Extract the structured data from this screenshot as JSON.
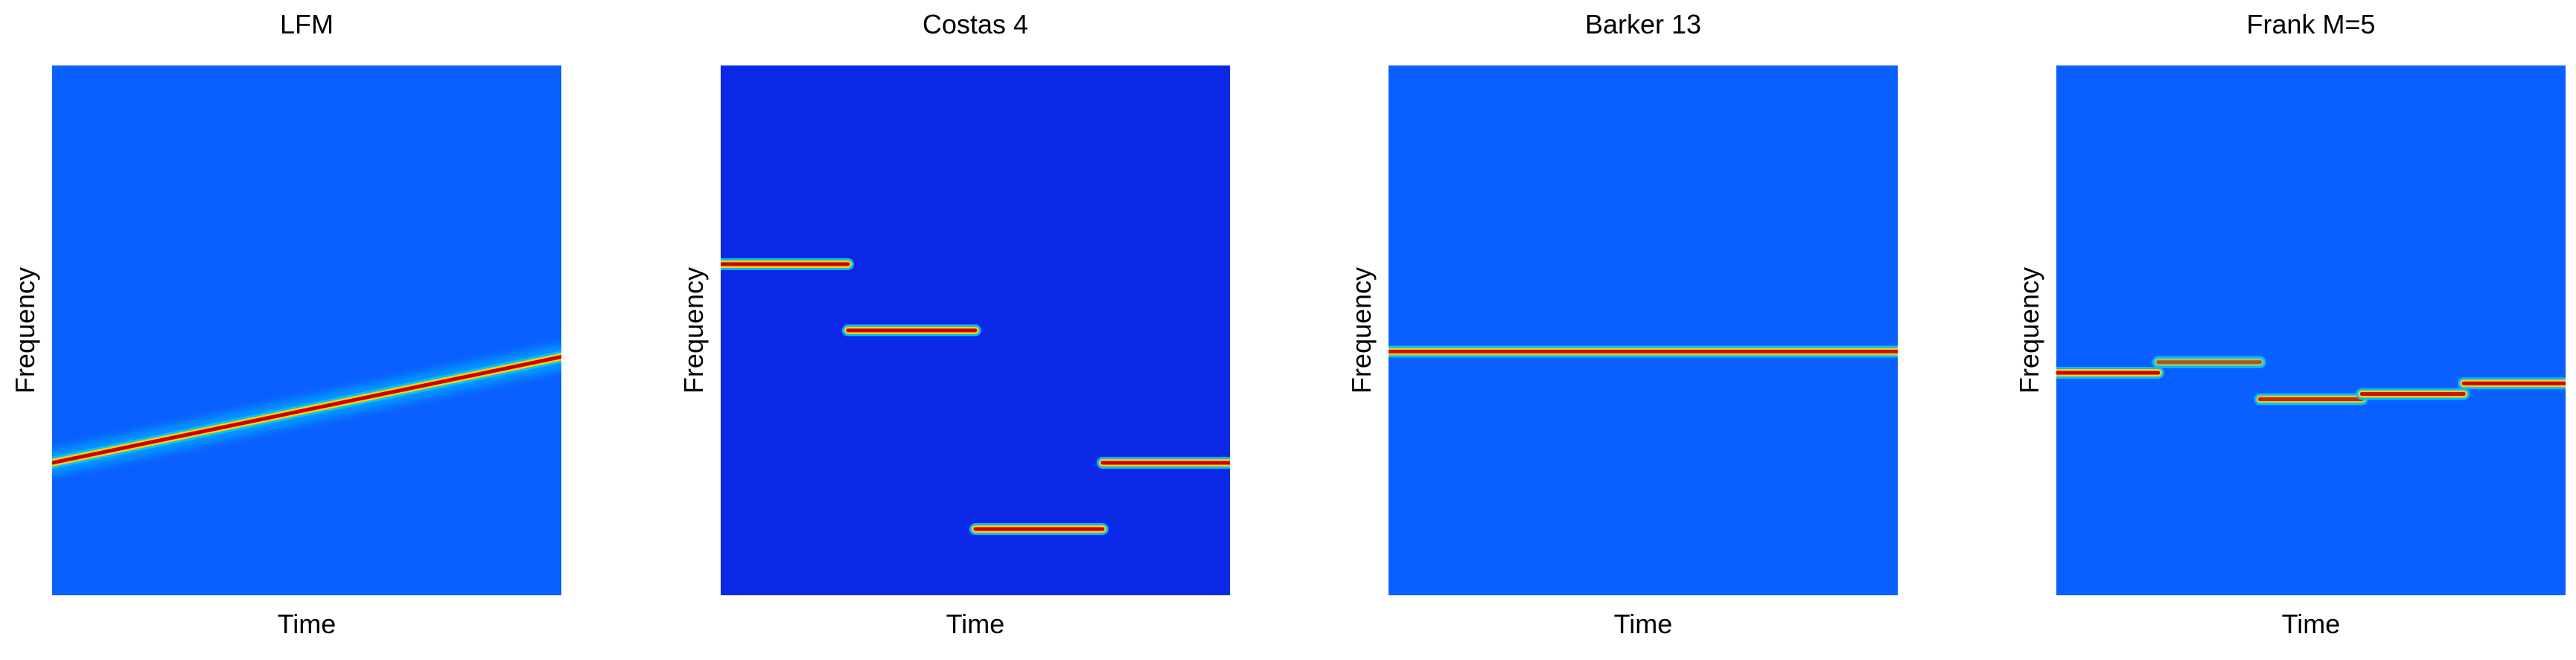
{
  "figure": {
    "panels": [
      {
        "title": "LFM",
        "xlabel": "Time",
        "ylabel": "Frequency"
      },
      {
        "title": "Costas 4",
        "xlabel": "Time",
        "ylabel": "Frequency"
      },
      {
        "title": "Barker 13",
        "xlabel": "Time",
        "ylabel": "Frequency"
      },
      {
        "title": "Frank M=5",
        "xlabel": "Time",
        "ylabel": "Frequency"
      }
    ]
  },
  "colors": {
    "background": "#0a28e6",
    "noise": "#0a5fff",
    "ridge_low": "#00c8ff",
    "ridge_mid": "#ffd200",
    "ridge_high": "#c80000"
  },
  "chart_data": [
    {
      "type": "heatmap",
      "title": "LFM",
      "xlabel": "Time",
      "ylabel": "Frequency",
      "xlim": [
        0,
        1
      ],
      "ylim": [
        0,
        1
      ],
      "grid": false,
      "legend": "none",
      "colormap": "jet",
      "ridges": [
        {
          "x": [
            0.0,
            1.0
          ],
          "y": [
            0.25,
            0.45
          ],
          "intensity": 1.0
        }
      ]
    },
    {
      "type": "heatmap",
      "title": "Costas 4",
      "xlabel": "Time",
      "ylabel": "Frequency",
      "xlim": [
        0,
        1
      ],
      "ylim": [
        0,
        1
      ],
      "grid": false,
      "legend": "none",
      "colormap": "jet",
      "ridges": [
        {
          "x": [
            0.0,
            0.25
          ],
          "y": [
            0.625,
            0.625
          ],
          "intensity": 1.0
        },
        {
          "x": [
            0.25,
            0.5
          ],
          "y": [
            0.5,
            0.5
          ],
          "intensity": 1.0
        },
        {
          "x": [
            0.5,
            0.75
          ],
          "y": [
            0.125,
            0.125
          ],
          "intensity": 1.0
        },
        {
          "x": [
            0.75,
            1.0
          ],
          "y": [
            0.25,
            0.25
          ],
          "intensity": 1.0
        }
      ]
    },
    {
      "type": "heatmap",
      "title": "Barker 13",
      "xlabel": "Time",
      "ylabel": "Frequency",
      "xlim": [
        0,
        1
      ],
      "ylim": [
        0,
        1
      ],
      "grid": false,
      "legend": "none",
      "colormap": "jet",
      "ridges": [
        {
          "x": [
            0.0,
            1.0
          ],
          "y": [
            0.46,
            0.46
          ],
          "intensity": 0.9
        }
      ]
    },
    {
      "type": "heatmap",
      "title": "Frank M=5",
      "xlabel": "Time",
      "ylabel": "Frequency",
      "xlim": [
        0,
        1
      ],
      "ylim": [
        0,
        1
      ],
      "grid": false,
      "legend": "none",
      "colormap": "jet",
      "ridges": [
        {
          "x": [
            0.0,
            0.2
          ],
          "y": [
            0.42,
            0.42
          ],
          "intensity": 1.0
        },
        {
          "x": [
            0.2,
            0.4
          ],
          "y": [
            0.44,
            0.44
          ],
          "intensity": 0.6
        },
        {
          "x": [
            0.4,
            0.6
          ],
          "y": [
            0.37,
            0.37
          ],
          "intensity": 0.8
        },
        {
          "x": [
            0.6,
            0.8
          ],
          "y": [
            0.38,
            0.38
          ],
          "intensity": 0.9
        },
        {
          "x": [
            0.8,
            1.0
          ],
          "y": [
            0.4,
            0.4
          ],
          "intensity": 1.0
        }
      ]
    }
  ]
}
